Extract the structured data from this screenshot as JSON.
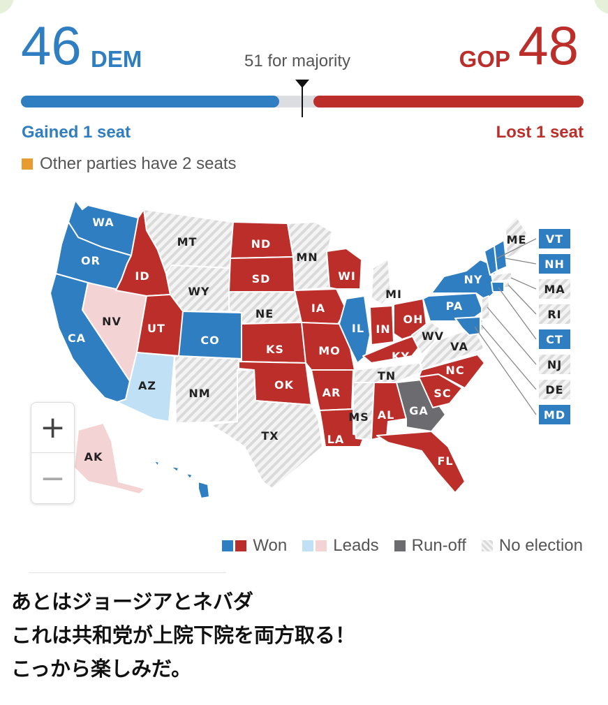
{
  "scoreboard": {
    "dem_seats": "46",
    "dem_label": "DEM",
    "gop_seats": "48",
    "gop_label": "GOP",
    "majority_text": "51 for majority",
    "dem_change": "Gained 1 seat",
    "gop_change": "Lost 1 seat",
    "other_text": "Other parties have 2 seats"
  },
  "colors": {
    "dem_won": "#2f7ec1",
    "gop_won": "#bb2e2a",
    "dem_leads": "#bfe0f5",
    "gop_leads": "#f4d3d4",
    "runoff": "#6b6b70",
    "no_election": "#e3e3e3",
    "other": "#e89b2f"
  },
  "map": {
    "states": [
      {
        "abbr": "WA",
        "status": "dem_won"
      },
      {
        "abbr": "OR",
        "status": "dem_won"
      },
      {
        "abbr": "CA",
        "status": "dem_won"
      },
      {
        "abbr": "NV",
        "status": "gop_leads"
      },
      {
        "abbr": "ID",
        "status": "gop_won"
      },
      {
        "abbr": "MT",
        "status": "no_election"
      },
      {
        "abbr": "WY",
        "status": "no_election"
      },
      {
        "abbr": "UT",
        "status": "gop_won"
      },
      {
        "abbr": "CO",
        "status": "dem_won"
      },
      {
        "abbr": "AZ",
        "status": "dem_leads"
      },
      {
        "abbr": "NM",
        "status": "no_election"
      },
      {
        "abbr": "ND",
        "status": "gop_won"
      },
      {
        "abbr": "SD",
        "status": "gop_won"
      },
      {
        "abbr": "NE",
        "status": "no_election"
      },
      {
        "abbr": "KS",
        "status": "gop_won"
      },
      {
        "abbr": "OK",
        "status": "gop_won"
      },
      {
        "abbr": "TX",
        "status": "no_election"
      },
      {
        "abbr": "MN",
        "status": "no_election"
      },
      {
        "abbr": "IA",
        "status": "gop_won"
      },
      {
        "abbr": "MO",
        "status": "gop_won"
      },
      {
        "abbr": "AR",
        "status": "gop_won"
      },
      {
        "abbr": "LA",
        "status": "gop_won"
      },
      {
        "abbr": "WI",
        "status": "gop_won"
      },
      {
        "abbr": "IL",
        "status": "dem_won"
      },
      {
        "abbr": "MI",
        "status": "no_election"
      },
      {
        "abbr": "IN",
        "status": "gop_won"
      },
      {
        "abbr": "OH",
        "status": "gop_won"
      },
      {
        "abbr": "KY",
        "status": "gop_won"
      },
      {
        "abbr": "TN",
        "status": "no_election"
      },
      {
        "abbr": "MS",
        "status": "no_election"
      },
      {
        "abbr": "AL",
        "status": "gop_won"
      },
      {
        "abbr": "GA",
        "status": "runoff"
      },
      {
        "abbr": "FL",
        "status": "gop_won"
      },
      {
        "abbr": "SC",
        "status": "gop_won"
      },
      {
        "abbr": "NC",
        "status": "gop_won"
      },
      {
        "abbr": "VA",
        "status": "no_election"
      },
      {
        "abbr": "WV",
        "status": "no_election"
      },
      {
        "abbr": "PA",
        "status": "dem_won"
      },
      {
        "abbr": "NY",
        "status": "dem_won"
      },
      {
        "abbr": "ME",
        "status": "no_election"
      },
      {
        "abbr": "VT",
        "status": "dem_won"
      },
      {
        "abbr": "NH",
        "status": "dem_won"
      },
      {
        "abbr": "MA",
        "status": "no_election"
      },
      {
        "abbr": "RI",
        "status": "no_election"
      },
      {
        "abbr": "CT",
        "status": "dem_won"
      },
      {
        "abbr": "NJ",
        "status": "no_election"
      },
      {
        "abbr": "DE",
        "status": "no_election"
      },
      {
        "abbr": "MD",
        "status": "dem_won"
      },
      {
        "abbr": "AK",
        "status": "gop_leads"
      },
      {
        "abbr": "HI",
        "status": "dem_won"
      }
    ]
  },
  "zoom": {
    "in_label": "+",
    "out_label": "−"
  },
  "legend": {
    "won": "Won",
    "leads": "Leads",
    "runoff": "Run-off",
    "no_election": "No election"
  },
  "caption": {
    "line1": "あとはジョージアとネバダ",
    "line2": "これは共和党が上院下院を両方取る！",
    "line3": "こっから楽しみだ。"
  }
}
